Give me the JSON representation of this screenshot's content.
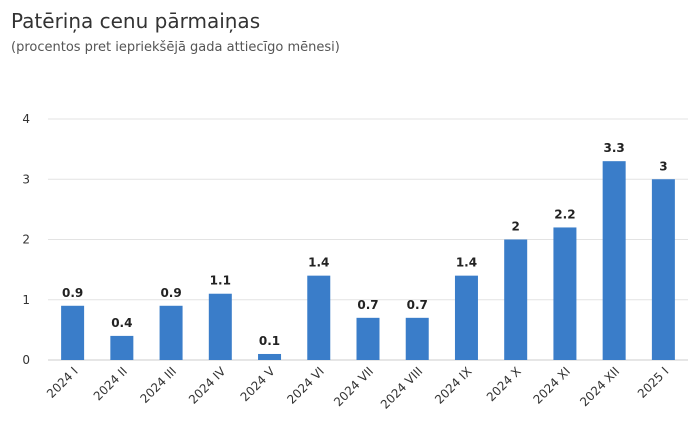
{
  "chart_data": {
    "type": "bar",
    "title": "Patēriņa cenu pārmaiņas",
    "subtitle": "(procentos pret iepriekšējā gada attiecīgo mēnesi)",
    "categories": [
      "2024 I",
      "2024 II",
      "2024 III",
      "2024 IV",
      "2024 V",
      "2024 VI",
      "2024 VII",
      "2024 VIII",
      "2024 IX",
      "2024 X",
      "2024 XI",
      "2024 XII",
      "2025 I"
    ],
    "values": [
      0.9,
      0.4,
      0.9,
      1.1,
      0.1,
      1.4,
      0.7,
      0.7,
      1.4,
      2,
      2.2,
      3.3,
      3
    ],
    "data_labels": [
      "0.9",
      "0.4",
      "0.9",
      "1.1",
      "0.1",
      "1.4",
      "0.7",
      "0.7",
      "1.4",
      "2",
      "2.2",
      "3.3",
      "3"
    ],
    "y_ticks": [
      0,
      1,
      2,
      3,
      4
    ],
    "ylim": [
      0,
      4
    ],
    "xlabel": "",
    "ylabel": "",
    "grid": true,
    "legend": "none",
    "bar_color": "#3a7dc9"
  }
}
